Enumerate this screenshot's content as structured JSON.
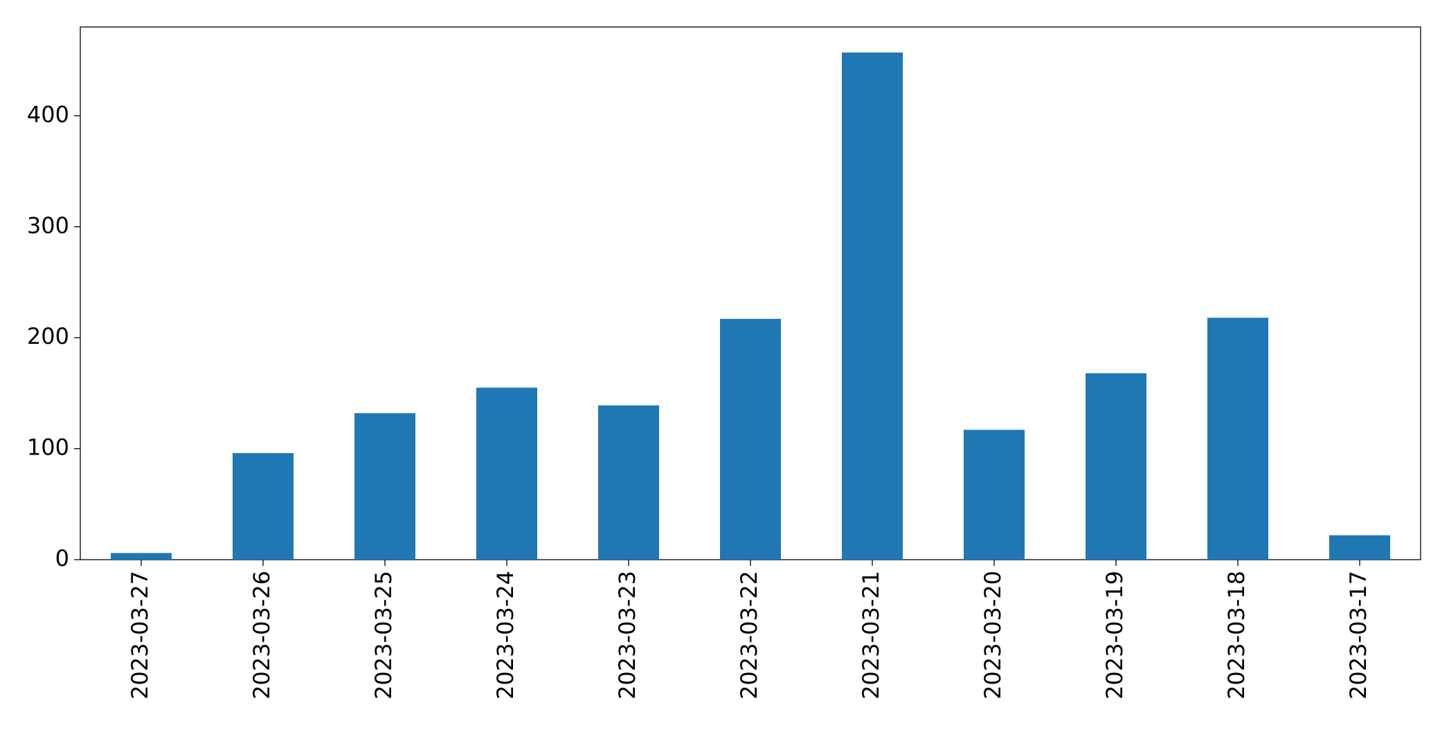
{
  "chart_data": {
    "type": "bar",
    "categories": [
      "2023-03-27",
      "2023-03-26",
      "2023-03-25",
      "2023-03-24",
      "2023-03-23",
      "2023-03-22",
      "2023-03-21",
      "2023-03-20",
      "2023-03-19",
      "2023-03-18",
      "2023-03-17"
    ],
    "values": [
      6,
      96,
      132,
      155,
      139,
      217,
      457,
      117,
      168,
      218,
      22
    ],
    "color": "#1f77b4",
    "ylim": [
      0,
      480
    ],
    "yticks": [
      0,
      100,
      200,
      300,
      400
    ],
    "grid": false
  }
}
